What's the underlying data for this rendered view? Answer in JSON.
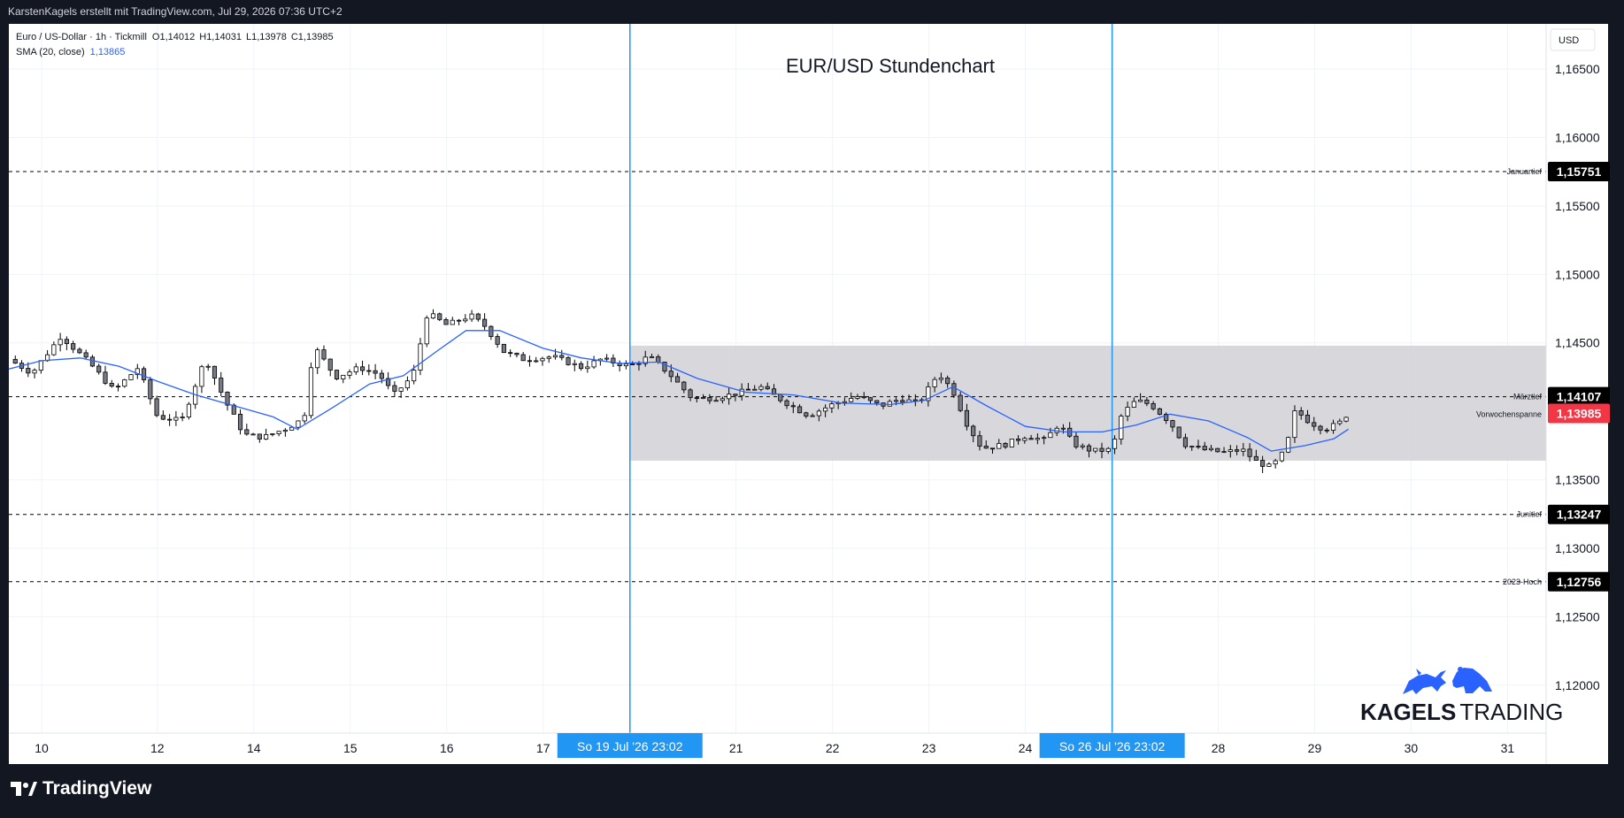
{
  "header": {
    "attribution": "KarstenKagels erstellt mit TradingView.com, Jul 29, 2026 07:36 UTC+2"
  },
  "legend": {
    "symbol": "Euro / US-Dollar · 1h · Tickmill",
    "open": "O1,14012",
    "high": "H1,14031",
    "low": "L1,13978",
    "close": "C1,13985",
    "sma_label": "SMA (20, close)",
    "sma_value": "1,13865"
  },
  "chart_title": "EUR/USD Stundenchart",
  "currency": "USD",
  "footer": {
    "brand": "TradingView"
  },
  "watermark": {
    "brand_bold": "KAGELS",
    "brand_light": "TRADING"
  },
  "colors": {
    "up": "#26a69a",
    "down": "#ef5350",
    "candle_body": "#787b86",
    "candle_outline": "#000000",
    "sma": "#2962ff",
    "session_line": "#2196f3",
    "range_box": "#d1d1d6",
    "price_label_bg": "#000000",
    "current_price_bg": "#f23645"
  },
  "chart_data": {
    "type": "candlestick",
    "title": "EUR/USD Stundenchart",
    "timeframe": "1h",
    "ylim": [
      1.1165,
      1.1683
    ],
    "y_ticks": [
      {
        "value": 1.165,
        "label": "1,16500"
      },
      {
        "value": 1.16,
        "label": "1,16000"
      },
      {
        "value": 1.155,
        "label": "1,15500"
      },
      {
        "value": 1.15,
        "label": "1,15000"
      },
      {
        "value": 1.145,
        "label": "1,14500"
      },
      {
        "value": 1.135,
        "label": "1,13500"
      },
      {
        "value": 1.13,
        "label": "1,13000"
      },
      {
        "value": 1.125,
        "label": "1,12500"
      },
      {
        "value": 1.12,
        "label": "1,12000"
      }
    ],
    "x_ticks": [
      "10",
      "12",
      "14",
      "15",
      "16",
      "17",
      "21",
      "22",
      "23",
      "24",
      "28",
      "29",
      "30",
      "31"
    ],
    "x_tick_days": [
      10,
      11.2,
      12.2,
      13.2,
      14.2,
      15.2,
      17.2,
      18.2,
      19.2,
      20.2,
      22.2,
      23.2,
      24.2,
      25.2
    ],
    "xlim": [
      9.66,
      25.6
    ],
    "session_markers": [
      {
        "day": 16.1,
        "label": "So 19 Jul '26   23:02"
      },
      {
        "day": 21.1,
        "label": "So 26 Jul '26   23:02"
      }
    ],
    "range_box": {
      "from_day": 16.1,
      "to_day": 25.6,
      "top": 1.1448,
      "bottom": 1.1364
    },
    "levels": [
      {
        "value": 1.15751,
        "label": "1,15751",
        "name": "Januartief",
        "style": "dashed",
        "color": "#000000"
      },
      {
        "value": 1.14107,
        "label": "1,14107",
        "name": "Märztief",
        "style": "dashed",
        "color": "#000000"
      },
      {
        "value": 1.13247,
        "label": "1,13247",
        "name": "Junitief",
        "style": "dashed",
        "color": "#000000"
      },
      {
        "value": 1.12756,
        "label": "1,12756",
        "name": "2023-Hoch",
        "style": "dashed",
        "color": "#000000"
      }
    ],
    "current_price": {
      "value": 1.13985,
      "label": "1,13985",
      "name": "Vorwochenspanne",
      "color": "#f23645"
    },
    "closes": [
      {
        "day": 9.66,
        "close": 1.1438
      },
      {
        "day": 9.9,
        "close": 1.1428
      },
      {
        "day": 10.2,
        "close": 1.1455
      },
      {
        "day": 10.5,
        "close": 1.1435
      },
      {
        "day": 10.75,
        "close": 1.1415
      },
      {
        "day": 11.0,
        "close": 1.1432
      },
      {
        "day": 11.2,
        "close": 1.1396
      },
      {
        "day": 11.45,
        "close": 1.1393
      },
      {
        "day": 11.7,
        "close": 1.1439
      },
      {
        "day": 11.9,
        "close": 1.1408
      },
      {
        "day": 12.1,
        "close": 1.1383
      },
      {
        "day": 12.3,
        "close": 1.1381
      },
      {
        "day": 12.55,
        "close": 1.1388
      },
      {
        "day": 12.72,
        "close": 1.1395
      },
      {
        "day": 12.82,
        "close": 1.1448
      },
      {
        "day": 13.05,
        "close": 1.1425
      },
      {
        "day": 13.3,
        "close": 1.1432
      },
      {
        "day": 13.5,
        "close": 1.1427
      },
      {
        "day": 13.65,
        "close": 1.1412
      },
      {
        "day": 13.85,
        "close": 1.1426
      },
      {
        "day": 14.0,
        "close": 1.1472
      },
      {
        "day": 14.2,
        "close": 1.1463
      },
      {
        "day": 14.45,
        "close": 1.147
      },
      {
        "day": 14.6,
        "close": 1.1462
      },
      {
        "day": 14.8,
        "close": 1.1443
      },
      {
        "day": 15.0,
        "close": 1.1438
      },
      {
        "day": 15.3,
        "close": 1.144
      },
      {
        "day": 15.6,
        "close": 1.1432
      },
      {
        "day": 15.8,
        "close": 1.1438
      },
      {
        "day": 16.1,
        "close": 1.1433
      },
      {
        "day": 16.3,
        "close": 1.144
      },
      {
        "day": 16.5,
        "close": 1.1428
      },
      {
        "day": 16.75,
        "close": 1.1409
      },
      {
        "day": 17.0,
        "close": 1.141
      },
      {
        "day": 17.2,
        "close": 1.1413
      },
      {
        "day": 17.45,
        "close": 1.1418
      },
      {
        "day": 17.7,
        "close": 1.1407
      },
      {
        "day": 17.95,
        "close": 1.1397
      },
      {
        "day": 18.2,
        "close": 1.1405
      },
      {
        "day": 18.45,
        "close": 1.1411
      },
      {
        "day": 18.7,
        "close": 1.1404
      },
      {
        "day": 18.9,
        "close": 1.1409
      },
      {
        "day": 19.1,
        "close": 1.1406
      },
      {
        "day": 19.3,
        "close": 1.1428
      },
      {
        "day": 19.45,
        "close": 1.1415
      },
      {
        "day": 19.6,
        "close": 1.139
      },
      {
        "day": 19.75,
        "close": 1.1373
      },
      {
        "day": 20.0,
        "close": 1.1376
      },
      {
        "day": 20.2,
        "close": 1.1382
      },
      {
        "day": 20.4,
        "close": 1.1379
      },
      {
        "day": 20.55,
        "close": 1.1391
      },
      {
        "day": 20.7,
        "close": 1.1376
      },
      {
        "day": 20.9,
        "close": 1.1371
      },
      {
        "day": 21.1,
        "close": 1.1372
      },
      {
        "day": 21.2,
        "close": 1.1398
      },
      {
        "day": 21.35,
        "close": 1.1408
      },
      {
        "day": 21.5,
        "close": 1.1405
      },
      {
        "day": 21.7,
        "close": 1.1392
      },
      {
        "day": 21.85,
        "close": 1.1376
      },
      {
        "day": 22.05,
        "close": 1.1372
      },
      {
        "day": 22.25,
        "close": 1.137
      },
      {
        "day": 22.45,
        "close": 1.1372
      },
      {
        "day": 22.6,
        "close": 1.1363
      },
      {
        "day": 22.75,
        "close": 1.1359
      },
      {
        "day": 22.9,
        "close": 1.1372
      },
      {
        "day": 23.0,
        "close": 1.1401
      },
      {
        "day": 23.15,
        "close": 1.1392
      },
      {
        "day": 23.3,
        "close": 1.1387
      },
      {
        "day": 23.45,
        "close": 1.1391
      },
      {
        "day": 23.55,
        "close": 1.1399
      }
    ],
    "sma": [
      {
        "day": 9.66,
        "value": 1.1431
      },
      {
        "day": 10.0,
        "value": 1.1437
      },
      {
        "day": 10.4,
        "value": 1.1439
      },
      {
        "day": 10.8,
        "value": 1.1433
      },
      {
        "day": 11.2,
        "value": 1.1422
      },
      {
        "day": 11.6,
        "value": 1.1412
      },
      {
        "day": 12.0,
        "value": 1.1404
      },
      {
        "day": 12.4,
        "value": 1.1396
      },
      {
        "day": 12.65,
        "value": 1.1387
      },
      {
        "day": 13.0,
        "value": 1.1402
      },
      {
        "day": 13.4,
        "value": 1.142
      },
      {
        "day": 13.75,
        "value": 1.1426
      },
      {
        "day": 14.1,
        "value": 1.1444
      },
      {
        "day": 14.4,
        "value": 1.1459
      },
      {
        "day": 14.75,
        "value": 1.1459
      },
      {
        "day": 15.2,
        "value": 1.1446
      },
      {
        "day": 15.6,
        "value": 1.1439
      },
      {
        "day": 16.0,
        "value": 1.1435
      },
      {
        "day": 16.4,
        "value": 1.1436
      },
      {
        "day": 16.8,
        "value": 1.1424
      },
      {
        "day": 17.3,
        "value": 1.1414
      },
      {
        "day": 17.8,
        "value": 1.1412
      },
      {
        "day": 18.3,
        "value": 1.1406
      },
      {
        "day": 18.8,
        "value": 1.1405
      },
      {
        "day": 19.15,
        "value": 1.1408
      },
      {
        "day": 19.45,
        "value": 1.1418
      },
      {
        "day": 19.8,
        "value": 1.1404
      },
      {
        "day": 20.2,
        "value": 1.1389
      },
      {
        "day": 20.6,
        "value": 1.1385
      },
      {
        "day": 21.0,
        "value": 1.1385
      },
      {
        "day": 21.35,
        "value": 1.139
      },
      {
        "day": 21.7,
        "value": 1.1398
      },
      {
        "day": 22.1,
        "value": 1.1393
      },
      {
        "day": 22.5,
        "value": 1.1381
      },
      {
        "day": 22.75,
        "value": 1.1371
      },
      {
        "day": 23.1,
        "value": 1.1375
      },
      {
        "day": 23.4,
        "value": 1.138
      },
      {
        "day": 23.55,
        "value": 1.1387
      }
    ]
  }
}
